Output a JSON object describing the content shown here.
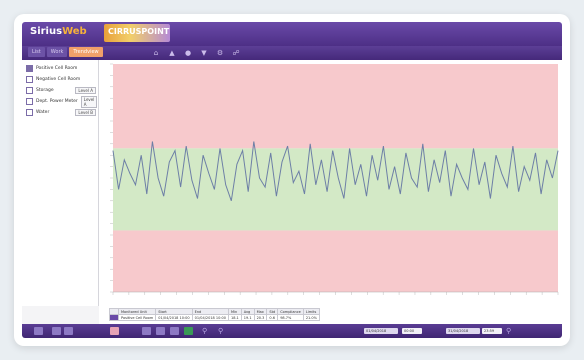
{
  "app": {
    "title_sirius": "Sirius",
    "title_web": "Web",
    "banner_text": "CIRRUSPOINT"
  },
  "tabs": [
    {
      "label": "List",
      "active": false
    },
    {
      "label": "Work",
      "active": false
    },
    {
      "label": "Trendview",
      "active": true
    }
  ],
  "toolbar_icons": [
    "home-icon",
    "bell-icon",
    "user-icon",
    "filter-icon",
    "settings-icon",
    "link-icon"
  ],
  "left_panel": {
    "items": [
      {
        "label": "Positive Cell Room",
        "checked": true,
        "select": ""
      },
      {
        "label": "Negative Cell Room",
        "checked": false,
        "select": ""
      },
      {
        "label": "Storage",
        "checked": false,
        "select": "Level A"
      },
      {
        "label": "Dept. Power Meter",
        "checked": false,
        "select": "Level A"
      },
      {
        "label": "Water",
        "checked": false,
        "select": "Level B"
      }
    ]
  },
  "chart": {
    "bands": [
      {
        "from": 0.0,
        "to": 0.37,
        "color": "#f7c9cc"
      },
      {
        "from": 0.37,
        "to": 0.73,
        "color": "#d3e9c6"
      },
      {
        "from": 0.73,
        "to": 1.0,
        "color": "#f7c9cc"
      }
    ],
    "line_color": "#6d7fa6"
  },
  "chart_data": {
    "type": "line",
    "values": [
      0.62,
      0.45,
      0.58,
      0.52,
      0.47,
      0.6,
      0.43,
      0.66,
      0.5,
      0.42,
      0.57,
      0.62,
      0.46,
      0.64,
      0.49,
      0.41,
      0.6,
      0.52,
      0.45,
      0.63,
      0.47,
      0.4,
      0.56,
      0.62,
      0.44,
      0.66,
      0.5,
      0.46,
      0.61,
      0.42,
      0.57,
      0.64,
      0.48,
      0.53,
      0.43,
      0.65,
      0.47,
      0.58,
      0.44,
      0.62,
      0.5,
      0.41,
      0.63,
      0.47,
      0.56,
      0.42,
      0.6,
      0.49,
      0.64,
      0.45,
      0.55,
      0.43,
      0.61,
      0.5,
      0.46,
      0.65,
      0.44,
      0.58,
      0.48,
      0.62,
      0.42,
      0.56,
      0.5,
      0.45,
      0.63,
      0.47,
      0.57,
      0.41,
      0.6,
      0.52,
      0.46,
      0.64,
      0.44,
      0.55,
      0.49,
      0.61,
      0.43,
      0.58,
      0.5,
      0.62
    ],
    "ylim": [
      0,
      1
    ]
  },
  "table": {
    "headers": [
      "",
      "Monitored Unit",
      "Start",
      "End",
      "Min",
      "Avg",
      "Max",
      "Std",
      "Compliance",
      "Limits"
    ],
    "rows": [
      {
        "swatch": "#6a4aa8",
        "cells": [
          "Positive Cell Room",
          "01/04/2018 10:00",
          "01/04/2018 10:00",
          "18.1",
          "19.1",
          "20.3",
          "0.6",
          "98.7%",
          "21.0%"
        ]
      }
    ]
  },
  "bottom_bar": {
    "field1": "01/04/2018",
    "select1": "00:00",
    "field2": "31/04/2018",
    "select2": "23:59"
  }
}
